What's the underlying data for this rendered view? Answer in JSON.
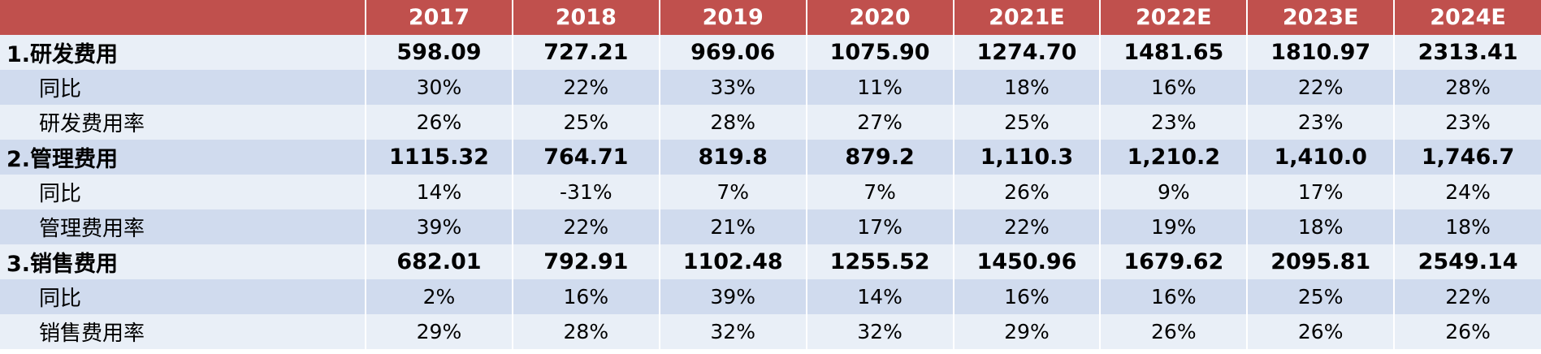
{
  "table": {
    "header": [
      "",
      "2017",
      "2018",
      "2019",
      "2020",
      "2021E",
      "2022E",
      "2023E",
      "2024E"
    ],
    "rows": [
      {
        "kind": "section",
        "label": "1.研发费用",
        "values": [
          "598.09",
          "727.21",
          "969.06",
          "1075.90",
          "1274.70",
          "1481.65",
          "1810.97",
          "2313.41"
        ]
      },
      {
        "kind": "sub",
        "label": "同比",
        "values": [
          "30%",
          "22%",
          "33%",
          "11%",
          "18%",
          "16%",
          "22%",
          "28%"
        ]
      },
      {
        "kind": "sub",
        "label": "研发费用率",
        "values": [
          "26%",
          "25%",
          "28%",
          "27%",
          "25%",
          "23%",
          "23%",
          "23%"
        ]
      },
      {
        "kind": "section",
        "label": "2.管理费用",
        "values": [
          "1115.32",
          "764.71",
          "819.8",
          "879.2",
          "1,110.3",
          "1,210.2",
          "1,410.0",
          "1,746.7"
        ]
      },
      {
        "kind": "sub",
        "label": "同比",
        "values": [
          "14%",
          "-31%",
          "7%",
          "7%",
          "26%",
          "9%",
          "17%",
          "24%"
        ]
      },
      {
        "kind": "sub",
        "label": "管理费用率",
        "values": [
          "39%",
          "22%",
          "21%",
          "17%",
          "22%",
          "19%",
          "18%",
          "18%"
        ]
      },
      {
        "kind": "section",
        "label": "3.销售费用",
        "values": [
          "682.01",
          "792.91",
          "1102.48",
          "1255.52",
          "1450.96",
          "1679.62",
          "2095.81",
          "2549.14"
        ]
      },
      {
        "kind": "sub",
        "label": "同比",
        "values": [
          "2%",
          "16%",
          "39%",
          "14%",
          "16%",
          "16%",
          "25%",
          "22%"
        ]
      },
      {
        "kind": "sub",
        "label": "销售费用率",
        "values": [
          "29%",
          "28%",
          "32%",
          "32%",
          "29%",
          "26%",
          "26%",
          "26%"
        ]
      }
    ]
  },
  "colors": {
    "header_bg": "#c0504d",
    "row_light": "#e9eff7",
    "row_dark": "#d0dbee"
  }
}
